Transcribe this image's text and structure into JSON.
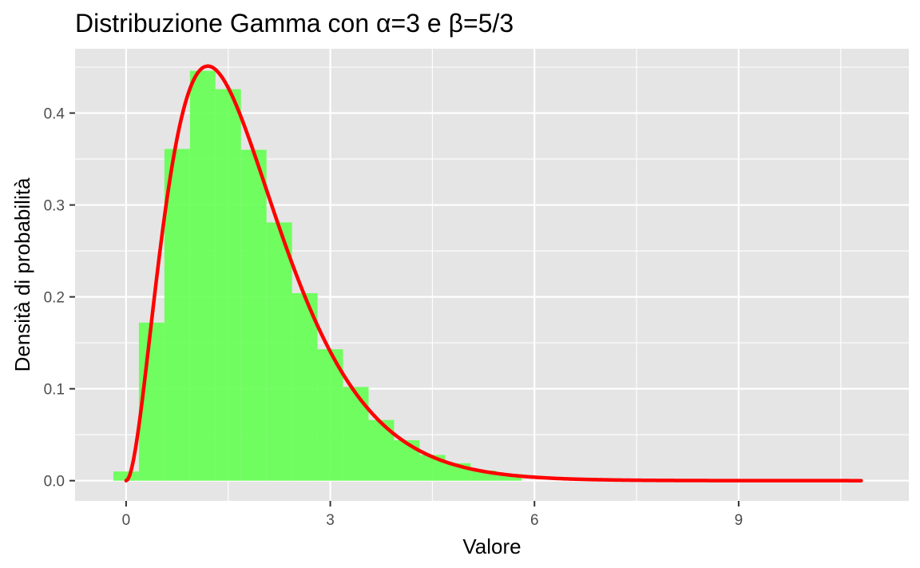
{
  "chart_data": {
    "type": "histogram",
    "title": "Distribuzione Gamma con α=3 e β=5/3",
    "xlabel": "Valore",
    "ylabel": "Densità di probabilità",
    "xlim": [
      -0.75,
      11.5
    ],
    "ylim": [
      -0.022,
      0.47
    ],
    "x_ticks": [
      0,
      3,
      6,
      9
    ],
    "x_tick_labels": [
      "0",
      "3",
      "6",
      "9"
    ],
    "y_ticks": [
      0.0,
      0.1,
      0.2,
      0.3,
      0.4
    ],
    "y_tick_labels": [
      "0.0",
      "0.1",
      "0.2",
      "0.3",
      "0.4"
    ],
    "grid": true,
    "colors": {
      "panel_background": "#e5e5e5",
      "grid": "#ffffff",
      "histogram_fill": "#66ff55",
      "curve": "#ff0000"
    },
    "histogram": {
      "bin_width": 0.375,
      "bins": [
        {
          "x": 0.0,
          "density": 0.01
        },
        {
          "x": 0.375,
          "density": 0.172
        },
        {
          "x": 0.75,
          "density": 0.361
        },
        {
          "x": 1.125,
          "density": 0.446
        },
        {
          "x": 1.5,
          "density": 0.426
        },
        {
          "x": 1.875,
          "density": 0.36
        },
        {
          "x": 2.25,
          "density": 0.281
        },
        {
          "x": 2.625,
          "density": 0.204
        },
        {
          "x": 3.0,
          "density": 0.143
        },
        {
          "x": 3.375,
          "density": 0.102
        },
        {
          "x": 3.75,
          "density": 0.066
        },
        {
          "x": 4.125,
          "density": 0.044
        },
        {
          "x": 4.5,
          "density": 0.028
        },
        {
          "x": 4.875,
          "density": 0.019
        },
        {
          "x": 5.25,
          "density": 0.011
        },
        {
          "x": 5.625,
          "density": 0.007
        }
      ]
    },
    "curve": {
      "name": "Gamma density",
      "shape": 3,
      "rate": 1.6667,
      "x_range": [
        0,
        10.8
      ]
    }
  }
}
